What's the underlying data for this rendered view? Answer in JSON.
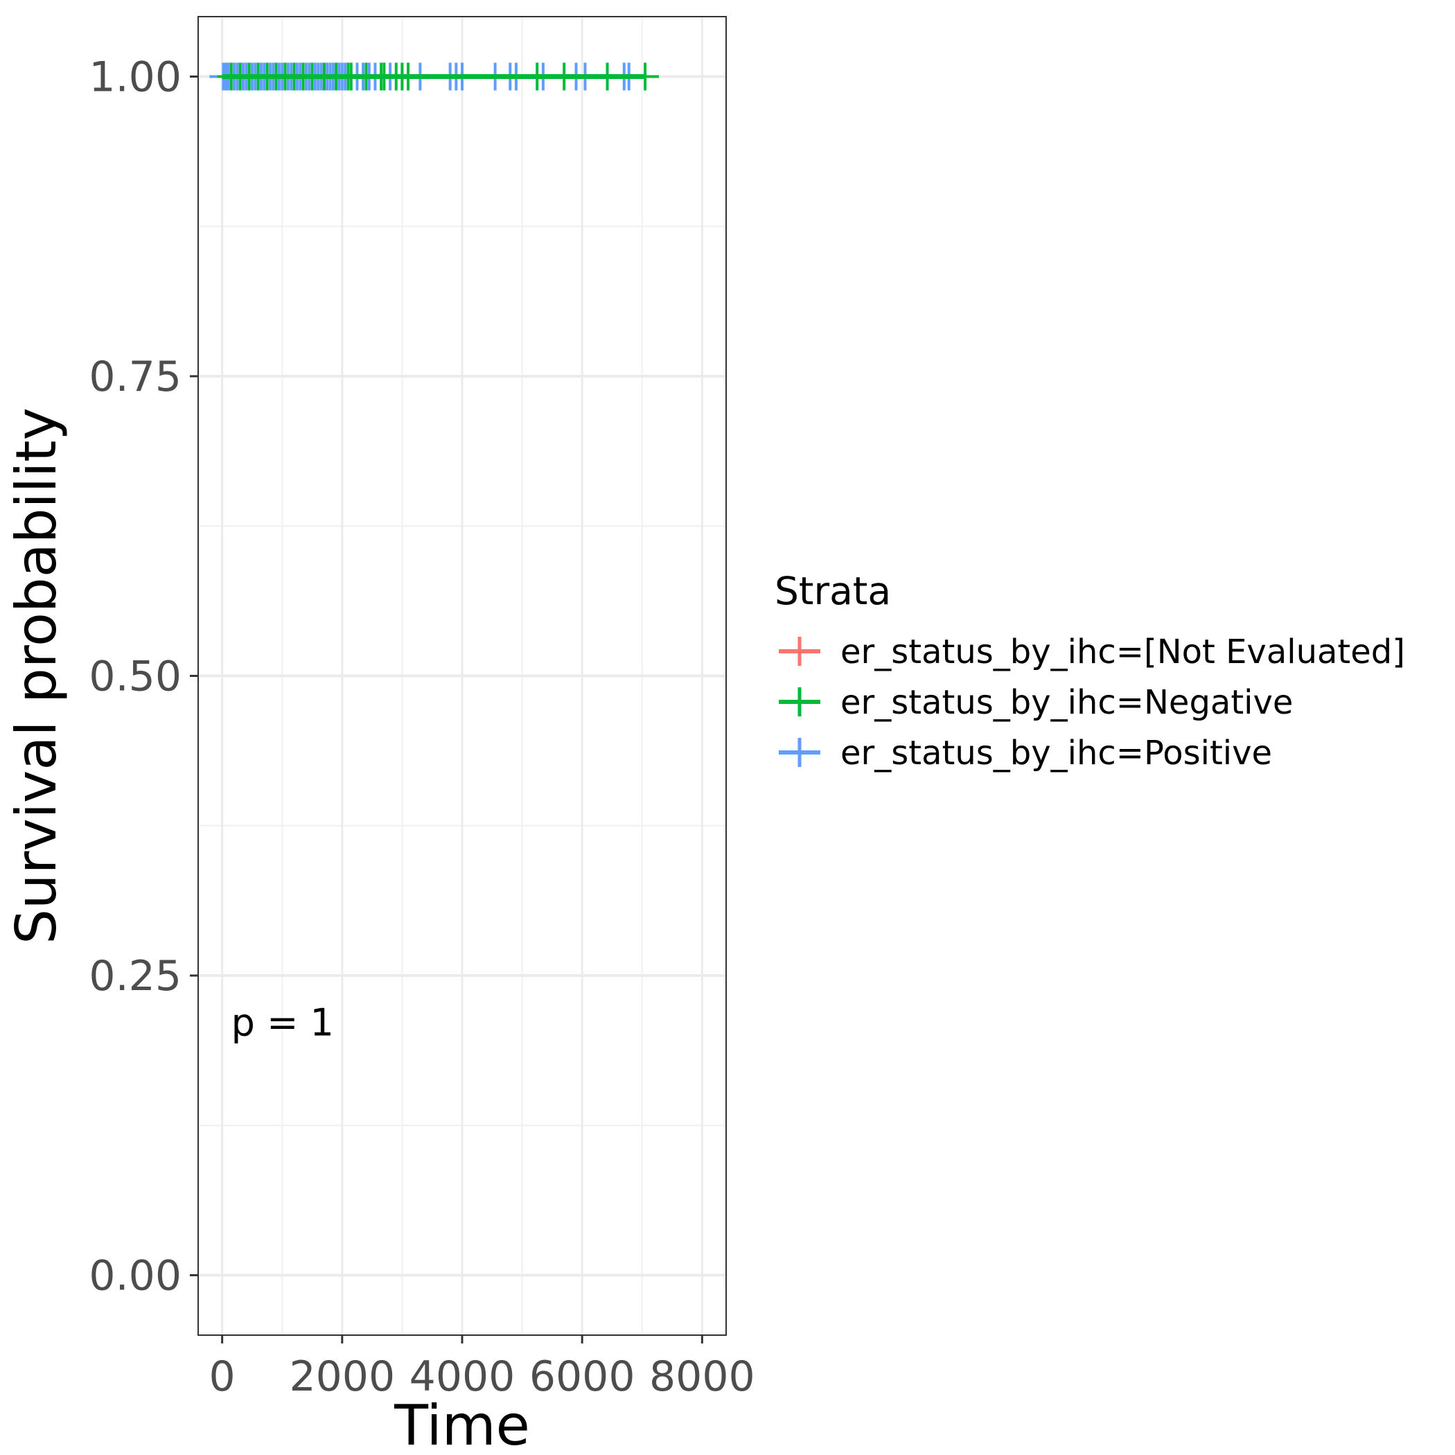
{
  "chart_data": {
    "type": "line",
    "subtype": "kaplan-meier",
    "title": "",
    "xlabel": "Time",
    "ylabel": "Survival probability",
    "xlim": [
      -400,
      8400
    ],
    "ylim": [
      -0.05,
      1.05
    ],
    "x_ticks": [
      0,
      2000,
      4000,
      6000,
      8000
    ],
    "x_tick_labels": [
      "0",
      "2000",
      "4000",
      "6000",
      "8000"
    ],
    "y_ticks": [
      0,
      0.25,
      0.5,
      0.75,
      1.0
    ],
    "y_tick_labels": [
      "0.00",
      "0.25",
      "0.50",
      "0.75",
      "1.00"
    ],
    "grid": true,
    "legend_title": "Strata",
    "legend_position": "right",
    "annotation": "p = 1",
    "annotation_position": {
      "x": 150,
      "y": 0.2
    },
    "series": [
      {
        "name": "er_status_by_ihc=[Not Evaluated]",
        "color": "#F8766D",
        "steps": [
          [
            0,
            1.0
          ],
          [
            60,
            1.0
          ]
        ],
        "censor_times": []
      },
      {
        "name": "er_status_by_ihc=Negative",
        "color": "#00BA38",
        "steps": [
          [
            0,
            1.0
          ],
          [
            7050,
            1.0
          ]
        ],
        "censor_times": [
          150,
          300,
          450,
          600,
          750,
          900,
          1050,
          1200,
          1350,
          1500,
          1700,
          1900,
          2100,
          2150,
          2400,
          2650,
          2700,
          2900,
          3000,
          3100,
          5250,
          5700,
          6420,
          7050
        ]
      },
      {
        "name": "er_status_by_ihc=Positive",
        "color": "#619CFF",
        "steps": [
          [
            0,
            1.0
          ],
          [
            6250,
            1.0
          ]
        ],
        "censor_times": [
          20,
          60,
          100,
          150,
          200,
          250,
          300,
          350,
          400,
          450,
          500,
          550,
          600,
          650,
          700,
          750,
          800,
          850,
          900,
          950,
          1000,
          1050,
          1100,
          1150,
          1200,
          1250,
          1300,
          1350,
          1400,
          1450,
          1500,
          1550,
          1600,
          1650,
          1700,
          1750,
          1800,
          1850,
          1900,
          1950,
          2000,
          2050,
          2250,
          2350,
          2450,
          2550,
          2800,
          3000,
          3300,
          3800,
          3900,
          4000,
          4550,
          4800,
          4900,
          5350,
          5900,
          6050,
          6700,
          6780
        ]
      }
    ]
  }
}
